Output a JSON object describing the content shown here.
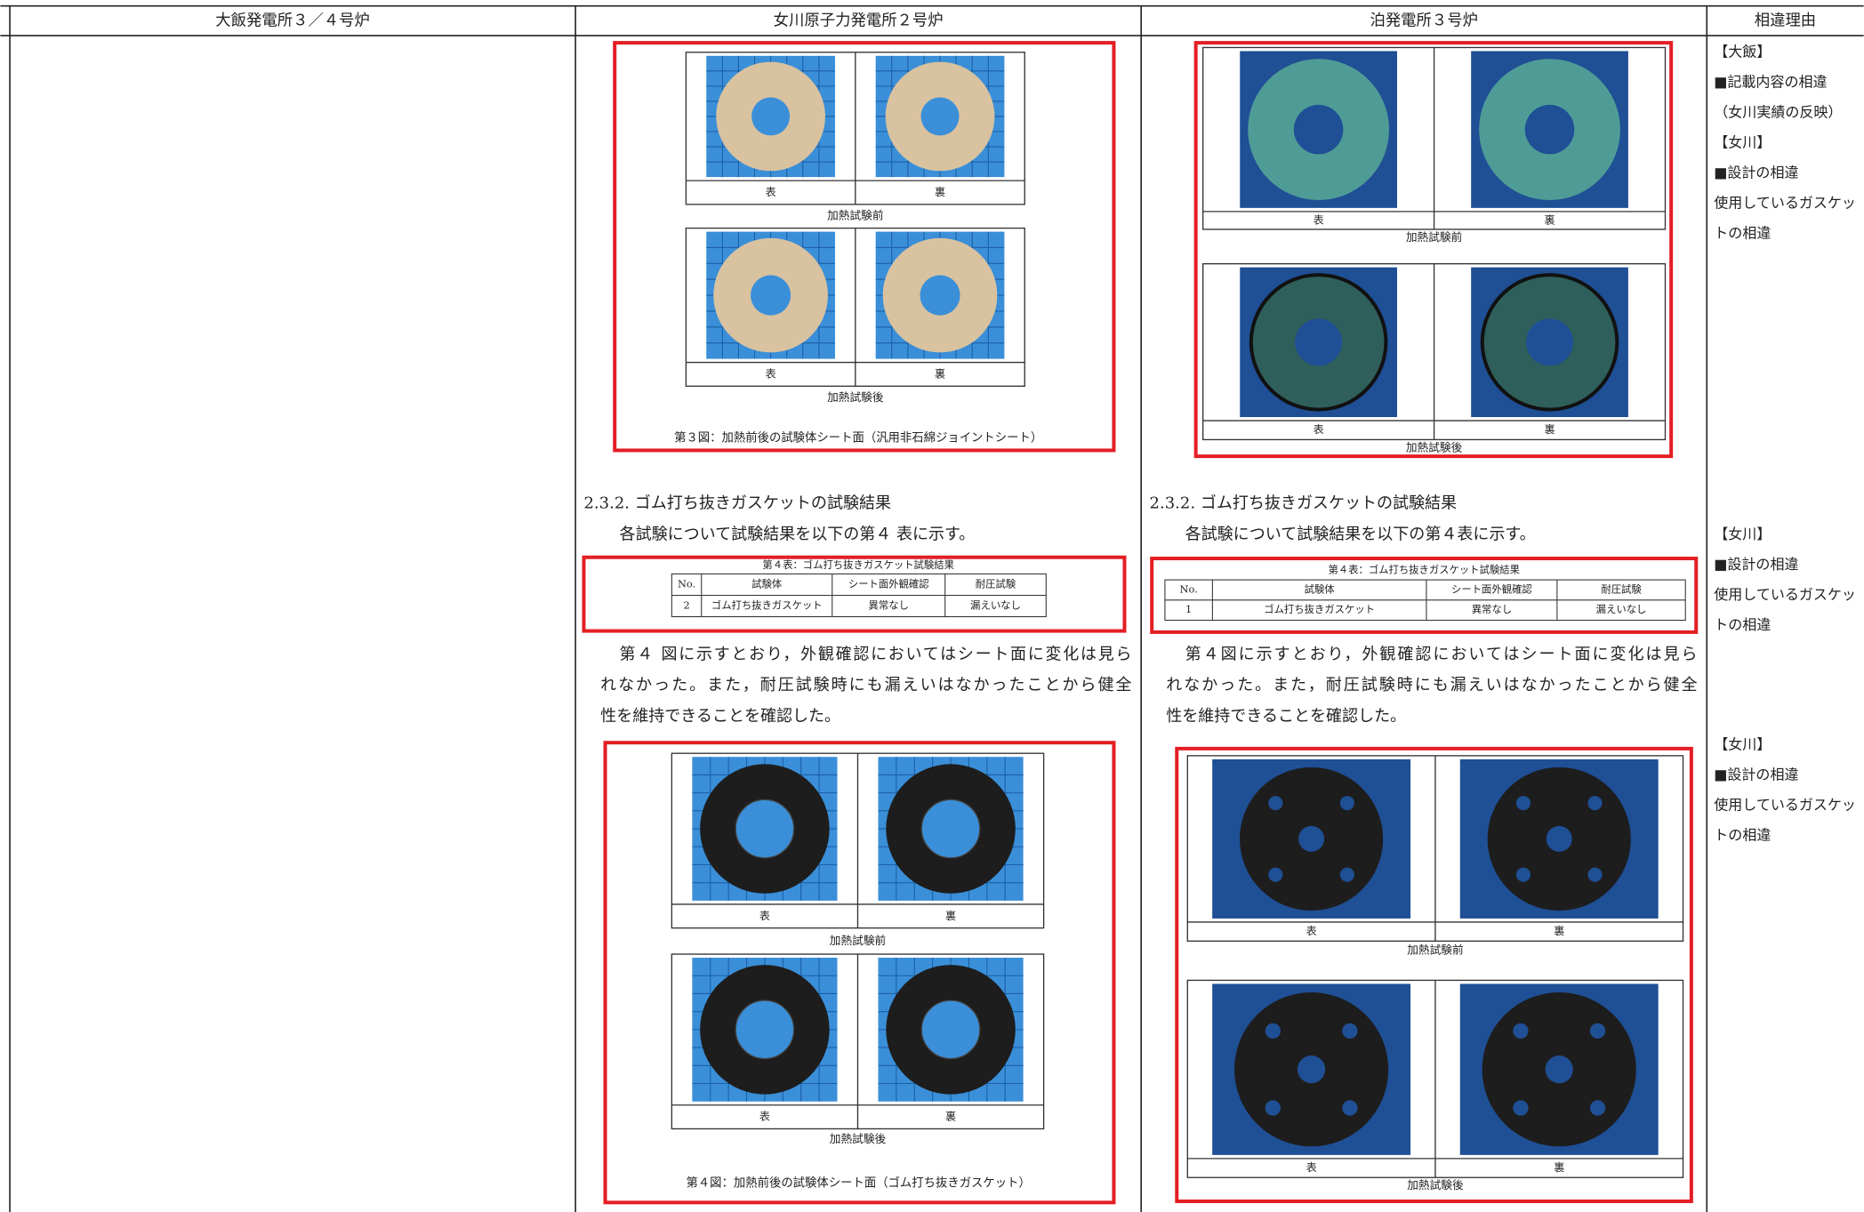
{
  "header": {
    "columns": [
      "大飯発電所３／４号炉",
      "女川原子力発電所２号炉",
      "泊発電所３号炉",
      "相違理由"
    ]
  },
  "onagawa": {
    "figure3": {
      "panels": [
        {
          "labels": [
            "表",
            "裏"
          ],
          "caption": "加熱試験前"
        },
        {
          "labels": [
            "表",
            "裏"
          ],
          "caption": "加熱試験後"
        }
      ],
      "caption": "第３図：加熱前後の試験体シート面（汎用非石綿ジョイントシート）"
    },
    "heading": "2.3.2.  ゴム打ち抜きガスケットの試験結果",
    "intro": "各試験について試験結果を以下の第４ 表に示す。",
    "table": {
      "title": "第４表：ゴム打ち抜きガスケット試験結果",
      "columns": [
        "No.",
        "試験体",
        "シート面外観確認",
        "耐圧試験"
      ],
      "rows": [
        [
          "2",
          "ゴム打ち抜きガスケット",
          "異常なし",
          "漏えいなし"
        ]
      ]
    },
    "paragraph": [
      "第４ 図に示すとおり，外観確認においてはシート面に変化は見ら",
      "れなかった。また，耐圧試験時にも漏えいはなかったことから健全",
      "性を維持できることを確認した。"
    ],
    "figure4": {
      "panels": [
        {
          "labels": [
            "表",
            "裏"
          ],
          "caption": "加熱試験前"
        },
        {
          "labels": [
            "表",
            "裏"
          ],
          "caption": "加熱試験後"
        }
      ],
      "caption": "第４図：加熱前後の試験体シート面（ゴム打ち抜きガスケット）"
    }
  },
  "tomari": {
    "figure3": {
      "panels": [
        {
          "labels": [
            "表",
            "裏"
          ],
          "caption": "加熱試験前"
        },
        {
          "labels": [
            "表",
            "裏"
          ],
          "caption": "加熱試験後"
        }
      ]
    },
    "heading": "2.3.2. ゴム打ち抜きガスケットの試験結果",
    "intro": "各試験について試験結果を以下の第４表に示す。",
    "table": {
      "title": "第４表：ゴム打ち抜きガスケット試験結果",
      "columns": [
        "No.",
        "試験体",
        "シート面外観確認",
        "耐圧試験"
      ],
      "rows": [
        [
          "1",
          "ゴム打ち抜きガスケット",
          "異常なし",
          "漏えいなし"
        ]
      ]
    },
    "paragraph": [
      "第４図に示すとおり，外観確認においてはシート面に変化は見ら",
      "れなかった。また，耐圧試験時にも漏えいはなかったことから健全",
      "性を維持できることを確認した。"
    ],
    "figure4": {
      "panels": [
        {
          "labels": [
            "表",
            "裏"
          ],
          "caption": "加熱試験前"
        },
        {
          "labels": [
            "表",
            "裏"
          ],
          "caption": "加熱試験後"
        }
      ]
    }
  },
  "reasons": [
    {
      "lines": [
        {
          "text": "【大飯】",
          "color": "#29a8d8"
        },
        {
          "text": "■記載内容の相違",
          "color": "#29a8d8"
        },
        {
          "text": "（女川実績の反映）",
          "color": "#29a8d8"
        },
        {
          "text": "【女川】",
          "color": "#e8302a"
        },
        {
          "text": "■設計の相違",
          "color": "#e8302a"
        },
        {
          "text": "使用しているガスケッ",
          "color": "#e8302a"
        },
        {
          "text": "トの相違",
          "color": "#e8302a"
        }
      ]
    },
    {
      "lines": [
        {
          "text": "【女川】",
          "color": "#e8302a"
        },
        {
          "text": "■設計の相違",
          "color": "#e8302a"
        },
        {
          "text": "使用しているガスケッ",
          "color": "#e8302a"
        },
        {
          "text": "トの相違",
          "color": "#e8302a"
        }
      ]
    },
    {
      "lines": [
        {
          "text": "【女川】",
          "color": "#e8302a"
        },
        {
          "text": "■設計の相違",
          "color": "#e8302a"
        },
        {
          "text": "使用しているガスケッ",
          "color": "#e8302a"
        },
        {
          "text": "トの相違",
          "color": "#e8302a"
        }
      ]
    }
  ]
}
